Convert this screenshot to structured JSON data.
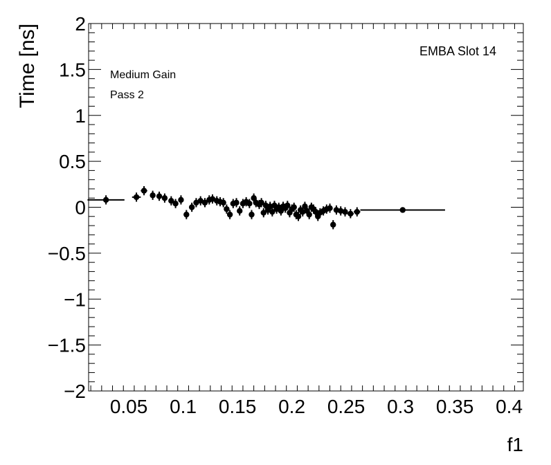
{
  "chart_data": {
    "type": "scatter",
    "xlabel": "f1",
    "ylabel": "Time [ns]",
    "xlim": [
      0.013,
      0.413
    ],
    "ylim": [
      -2,
      2
    ],
    "x_ticks": [
      0.05,
      0.1,
      0.15,
      0.2,
      0.25,
      0.3,
      0.35,
      0.4
    ],
    "x_tick_labels": [
      "0.05",
      "0.1",
      "0.15",
      "0.2",
      "0.25",
      "0.3",
      "0.35",
      "0.4"
    ],
    "y_ticks": [
      -2,
      -1.5,
      -1,
      -0.5,
      0,
      0.5,
      1,
      1.5,
      2
    ],
    "y_tick_labels": [
      "−2",
      "−1.5",
      "−1",
      "−0.5",
      "0",
      "0.5",
      "1",
      "1.5",
      "2"
    ],
    "grid": false,
    "annotations": {
      "top_right": "EMBA Slot 14",
      "line1": "Medium Gain",
      "line2": "Pass 2"
    },
    "marker_color": "#000000",
    "points": [
      {
        "x": 0.029,
        "y": 0.08,
        "xerr": 0.017,
        "yerr": 0.05
      },
      {
        "x": 0.057,
        "y": 0.11,
        "xerr": 0.004,
        "yerr": 0.05
      },
      {
        "x": 0.064,
        "y": 0.18,
        "xerr": 0.003,
        "yerr": 0.05
      },
      {
        "x": 0.072,
        "y": 0.13,
        "xerr": 0.002,
        "yerr": 0.05
      },
      {
        "x": 0.078,
        "y": 0.12,
        "xerr": 0.002,
        "yerr": 0.05
      },
      {
        "x": 0.083,
        "y": 0.1,
        "xerr": 0.002,
        "yerr": 0.05
      },
      {
        "x": 0.089,
        "y": 0.07,
        "xerr": 0.002,
        "yerr": 0.05
      },
      {
        "x": 0.093,
        "y": 0.04,
        "xerr": 0.002,
        "yerr": 0.05
      },
      {
        "x": 0.098,
        "y": 0.08,
        "xerr": 0.002,
        "yerr": 0.05
      },
      {
        "x": 0.103,
        "y": -0.08,
        "xerr": 0.002,
        "yerr": 0.05
      },
      {
        "x": 0.108,
        "y": 0.0,
        "xerr": 0.002,
        "yerr": 0.05
      },
      {
        "x": 0.112,
        "y": 0.05,
        "xerr": 0.002,
        "yerr": 0.05
      },
      {
        "x": 0.116,
        "y": 0.07,
        "xerr": 0.002,
        "yerr": 0.05
      },
      {
        "x": 0.12,
        "y": 0.05,
        "xerr": 0.002,
        "yerr": 0.05
      },
      {
        "x": 0.124,
        "y": 0.08,
        "xerr": 0.002,
        "yerr": 0.05
      },
      {
        "x": 0.127,
        "y": 0.09,
        "xerr": 0.002,
        "yerr": 0.05
      },
      {
        "x": 0.131,
        "y": 0.07,
        "xerr": 0.002,
        "yerr": 0.05
      },
      {
        "x": 0.134,
        "y": 0.06,
        "xerr": 0.002,
        "yerr": 0.05
      },
      {
        "x": 0.137,
        "y": 0.05,
        "xerr": 0.002,
        "yerr": 0.05
      },
      {
        "x": 0.14,
        "y": -0.02,
        "xerr": 0.002,
        "yerr": 0.05
      },
      {
        "x": 0.143,
        "y": -0.08,
        "xerr": 0.002,
        "yerr": 0.05
      },
      {
        "x": 0.146,
        "y": 0.04,
        "xerr": 0.002,
        "yerr": 0.05
      },
      {
        "x": 0.149,
        "y": 0.05,
        "xerr": 0.002,
        "yerr": 0.05
      },
      {
        "x": 0.152,
        "y": -0.04,
        "xerr": 0.002,
        "yerr": 0.05
      },
      {
        "x": 0.155,
        "y": 0.04,
        "xerr": 0.002,
        "yerr": 0.05
      },
      {
        "x": 0.158,
        "y": 0.06,
        "xerr": 0.002,
        "yerr": 0.05
      },
      {
        "x": 0.161,
        "y": 0.04,
        "xerr": 0.002,
        "yerr": 0.05
      },
      {
        "x": 0.163,
        "y": -0.08,
        "xerr": 0.002,
        "yerr": 0.05
      },
      {
        "x": 0.165,
        "y": 0.1,
        "xerr": 0.002,
        "yerr": 0.05
      },
      {
        "x": 0.167,
        "y": 0.05,
        "xerr": 0.002,
        "yerr": 0.05
      },
      {
        "x": 0.17,
        "y": 0.03,
        "xerr": 0.002,
        "yerr": 0.05
      },
      {
        "x": 0.172,
        "y": 0.05,
        "xerr": 0.002,
        "yerr": 0.05
      },
      {
        "x": 0.174,
        "y": -0.06,
        "xerr": 0.002,
        "yerr": 0.05
      },
      {
        "x": 0.176,
        "y": 0.02,
        "xerr": 0.002,
        "yerr": 0.05
      },
      {
        "x": 0.178,
        "y": -0.03,
        "xerr": 0.002,
        "yerr": 0.05
      },
      {
        "x": 0.18,
        "y": 0.01,
        "xerr": 0.002,
        "yerr": 0.05
      },
      {
        "x": 0.182,
        "y": -0.05,
        "xerr": 0.002,
        "yerr": 0.05
      },
      {
        "x": 0.184,
        "y": 0.02,
        "xerr": 0.002,
        "yerr": 0.05
      },
      {
        "x": 0.186,
        "y": -0.02,
        "xerr": 0.002,
        "yerr": 0.05
      },
      {
        "x": 0.188,
        "y": 0.0,
        "xerr": 0.002,
        "yerr": 0.05
      },
      {
        "x": 0.19,
        "y": -0.04,
        "xerr": 0.002,
        "yerr": 0.05
      },
      {
        "x": 0.192,
        "y": 0.01,
        "xerr": 0.002,
        "yerr": 0.05
      },
      {
        "x": 0.194,
        "y": -0.01,
        "xerr": 0.002,
        "yerr": 0.05
      },
      {
        "x": 0.196,
        "y": 0.02,
        "xerr": 0.002,
        "yerr": 0.05
      },
      {
        "x": 0.198,
        "y": -0.06,
        "xerr": 0.002,
        "yerr": 0.05
      },
      {
        "x": 0.2,
        "y": -0.02,
        "xerr": 0.002,
        "yerr": 0.05
      },
      {
        "x": 0.202,
        "y": 0.0,
        "xerr": 0.002,
        "yerr": 0.05
      },
      {
        "x": 0.204,
        "y": -0.08,
        "xerr": 0.002,
        "yerr": 0.05
      },
      {
        "x": 0.206,
        "y": -0.1,
        "xerr": 0.002,
        "yerr": 0.05
      },
      {
        "x": 0.208,
        "y": -0.03,
        "xerr": 0.002,
        "yerr": 0.05
      },
      {
        "x": 0.21,
        "y": -0.05,
        "xerr": 0.002,
        "yerr": 0.05
      },
      {
        "x": 0.212,
        "y": 0.01,
        "xerr": 0.002,
        "yerr": 0.05
      },
      {
        "x": 0.214,
        "y": -0.04,
        "xerr": 0.002,
        "yerr": 0.05
      },
      {
        "x": 0.216,
        "y": -0.08,
        "xerr": 0.002,
        "yerr": 0.05
      },
      {
        "x": 0.218,
        "y": 0.0,
        "xerr": 0.002,
        "yerr": 0.05
      },
      {
        "x": 0.22,
        "y": -0.02,
        "xerr": 0.002,
        "yerr": 0.05
      },
      {
        "x": 0.222,
        "y": -0.05,
        "xerr": 0.002,
        "yerr": 0.05
      },
      {
        "x": 0.224,
        "y": -0.1,
        "xerr": 0.002,
        "yerr": 0.05
      },
      {
        "x": 0.226,
        "y": -0.06,
        "xerr": 0.002,
        "yerr": 0.05
      },
      {
        "x": 0.229,
        "y": -0.04,
        "xerr": 0.002,
        "yerr": 0.05
      },
      {
        "x": 0.232,
        "y": -0.02,
        "xerr": 0.002,
        "yerr": 0.05
      },
      {
        "x": 0.235,
        "y": -0.01,
        "xerr": 0.002,
        "yerr": 0.05
      },
      {
        "x": 0.238,
        "y": -0.19,
        "xerr": 0.002,
        "yerr": 0.05
      },
      {
        "x": 0.241,
        "y": -0.03,
        "xerr": 0.002,
        "yerr": 0.05
      },
      {
        "x": 0.245,
        "y": -0.04,
        "xerr": 0.002,
        "yerr": 0.05
      },
      {
        "x": 0.249,
        "y": -0.05,
        "xerr": 0.002,
        "yerr": 0.05
      },
      {
        "x": 0.254,
        "y": -0.07,
        "xerr": 0.003,
        "yerr": 0.05
      },
      {
        "x": 0.26,
        "y": -0.05,
        "xerr": 0.003,
        "yerr": 0.05
      },
      {
        "x": 0.302,
        "y": -0.03,
        "xerr": 0.039,
        "yerr": 0.03
      }
    ]
  }
}
